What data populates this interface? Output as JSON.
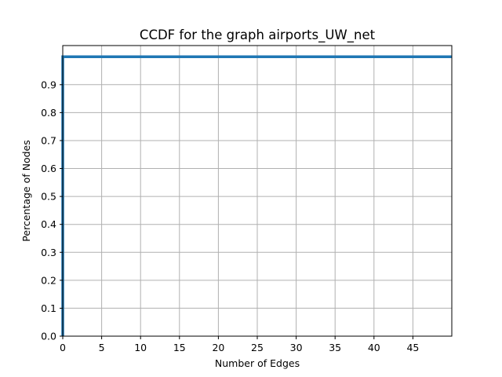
{
  "chart_data": {
    "type": "line",
    "title": "CCDF for the graph airports_UW_net",
    "xlabel": "Number of Edges",
    "ylabel": "Percentage of Nodes",
    "xlim": [
      0,
      50
    ],
    "ylim": [
      0,
      1.04
    ],
    "xticks": [
      0,
      5,
      10,
      15,
      20,
      25,
      30,
      35,
      40,
      45
    ],
    "xtick_labels": [
      "0",
      "5",
      "10",
      "15",
      "20",
      "25",
      "30",
      "35",
      "40",
      "45"
    ],
    "yticks": [
      0.0,
      0.1,
      0.2,
      0.3,
      0.4,
      0.5,
      0.6,
      0.7,
      0.8,
      0.9
    ],
    "ytick_labels": [
      "0.0",
      "0.1",
      "0.2",
      "0.3",
      "0.4",
      "0.5",
      "0.6",
      "0.7",
      "0.8",
      "0.9"
    ],
    "grid": true,
    "series": [
      {
        "color": "#1f77b4",
        "x": [
          0,
          0,
          50
        ],
        "y": [
          0,
          1.0,
          1.0
        ]
      }
    ]
  }
}
